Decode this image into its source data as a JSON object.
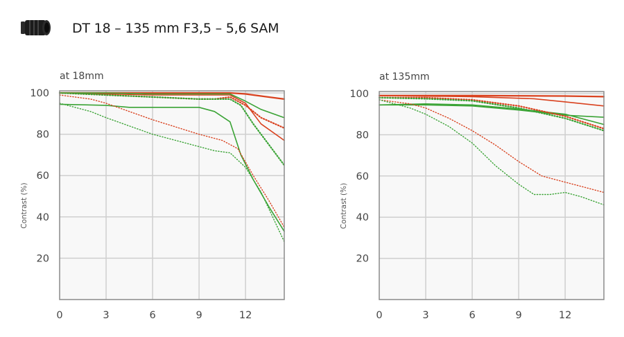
{
  "title": "DT 18 – 135 mm F3,5 – 5,6 SAM",
  "icons": {
    "lens": "lens-icon"
  },
  "colors": {
    "red": "#d9411e",
    "green": "#3aa335",
    "frame": "#8a8a8a",
    "grid": "#cfcfcf"
  },
  "chart_data": [
    {
      "type": "line",
      "title": "at 18mm",
      "xlabel": "",
      "ylabel": "Contrast (%)",
      "xlim": [
        0,
        14.5
      ],
      "ylim": [
        0,
        101
      ],
      "xticks": [
        0,
        3,
        6,
        9,
        12
      ],
      "yticks": [
        20,
        40,
        60,
        80,
        100
      ],
      "grid": true,
      "series": [
        {
          "color": "red",
          "style": "solid",
          "width": 2.2,
          "points": [
            [
              0,
              100
            ],
            [
              3,
              100
            ],
            [
              6,
              100
            ],
            [
              9,
              100
            ],
            [
              11,
              100
            ],
            [
              12,
              99.5
            ],
            [
              13,
              98.5
            ],
            [
              14.5,
              97
            ]
          ]
        },
        {
          "color": "red",
          "style": "solid",
          "width": 1.6,
          "points": [
            [
              0,
              100
            ],
            [
              3,
              99.5
            ],
            [
              6,
              99
            ],
            [
              9,
              99
            ],
            [
              11,
              99
            ],
            [
              12,
              95
            ],
            [
              13,
              85
            ],
            [
              14.5,
              77
            ]
          ]
        },
        {
          "color": "green",
          "style": "solid",
          "width": 1.6,
          "points": [
            [
              0,
              100
            ],
            [
              3,
              100
            ],
            [
              6,
              99.5
            ],
            [
              9,
              99.5
            ],
            [
              11,
              99.5
            ],
            [
              12,
              96
            ],
            [
              13,
              92
            ],
            [
              14.5,
              88
            ]
          ]
        },
        {
          "color": "green",
          "style": "solid",
          "width": 1.6,
          "points": [
            [
              0,
              94.5
            ],
            [
              3,
              94
            ],
            [
              4.5,
              93
            ],
            [
              6,
              93
            ],
            [
              8,
              93
            ],
            [
              9,
              93
            ],
            [
              10,
              91
            ],
            [
              11,
              86
            ],
            [
              11.7,
              70
            ],
            [
              12.5,
              58
            ],
            [
              13.5,
              45
            ],
            [
              14.5,
              33
            ]
          ]
        },
        {
          "color": "red",
          "style": "dotted",
          "width": 2.2,
          "points": [
            [
              0,
              100
            ],
            [
              3,
              99
            ],
            [
              6,
              98
            ],
            [
              9,
              97
            ],
            [
              10,
              97
            ],
            [
              11,
              98
            ],
            [
              12,
              94
            ],
            [
              13,
              88
            ],
            [
              14.5,
              83
            ]
          ]
        },
        {
          "color": "green",
          "style": "dotted",
          "width": 2.2,
          "points": [
            [
              0,
              100
            ],
            [
              3,
              99
            ],
            [
              6,
              98
            ],
            [
              9,
              97
            ],
            [
              10,
              97
            ],
            [
              11,
              97
            ],
            [
              11.7,
              94
            ],
            [
              12.5,
              85
            ],
            [
              13.5,
              75
            ],
            [
              14.5,
              65
            ]
          ]
        },
        {
          "color": "red",
          "style": "dotted",
          "width": 1.4,
          "points": [
            [
              0,
              99
            ],
            [
              2,
              97
            ],
            [
              3,
              95
            ],
            [
              6,
              87
            ],
            [
              9,
              80
            ],
            [
              10.5,
              77
            ],
            [
              11.5,
              73
            ],
            [
              12.5,
              60
            ],
            [
              13.5,
              48
            ],
            [
              14.5,
              35
            ]
          ]
        },
        {
          "color": "green",
          "style": "dotted",
          "width": 1.4,
          "points": [
            [
              0,
              95
            ],
            [
              2,
              91
            ],
            [
              3,
              88
            ],
            [
              4.5,
              84
            ],
            [
              6,
              80
            ],
            [
              9,
              74
            ],
            [
              10,
              72
            ],
            [
              11,
              71
            ],
            [
              12,
              64
            ],
            [
              13,
              52
            ],
            [
              14.5,
              28
            ]
          ]
        }
      ]
    },
    {
      "type": "line",
      "title": "at 135mm",
      "xlabel": "",
      "ylabel": "Contrast (%)",
      "xlim": [
        0,
        14.5
      ],
      "ylim": [
        0,
        101
      ],
      "xticks": [
        0,
        3,
        6,
        9,
        12
      ],
      "yticks": [
        20,
        40,
        60,
        80,
        100
      ],
      "grid": true,
      "series": [
        {
          "color": "red",
          "style": "solid",
          "width": 2.2,
          "points": [
            [
              0,
              99
            ],
            [
              6,
              99
            ],
            [
              12,
              98.8
            ],
            [
              14.5,
              98.5
            ]
          ]
        },
        {
          "color": "red",
          "style": "solid",
          "width": 1.6,
          "points": [
            [
              0,
              99
            ],
            [
              6,
              98.5
            ],
            [
              10,
              97.5
            ],
            [
              12,
              96
            ],
            [
              14.5,
              94
            ]
          ]
        },
        {
          "color": "green",
          "style": "solid",
          "width": 1.6,
          "points": [
            [
              0,
              94.5
            ],
            [
              3,
              94.5
            ],
            [
              6,
              94
            ],
            [
              9,
              92
            ],
            [
              12,
              89.5
            ],
            [
              14.5,
              88.5
            ]
          ]
        },
        {
          "color": "green",
          "style": "solid",
          "width": 1.6,
          "points": [
            [
              0,
              94.5
            ],
            [
              3,
              95
            ],
            [
              6,
              94.5
            ],
            [
              9,
              92.5
            ],
            [
              12,
              90
            ],
            [
              14.5,
              85
            ]
          ]
        },
        {
          "color": "red",
          "style": "dotted",
          "width": 2.2,
          "points": [
            [
              0,
              98
            ],
            [
              3,
              98
            ],
            [
              6,
              97
            ],
            [
              9,
              94
            ],
            [
              12,
              89
            ],
            [
              14.5,
              83
            ]
          ]
        },
        {
          "color": "green",
          "style": "dotted",
          "width": 2.2,
          "points": [
            [
              0,
              98
            ],
            [
              3,
              97.5
            ],
            [
              6,
              96.5
            ],
            [
              9,
              93
            ],
            [
              12,
              88
            ],
            [
              14.5,
              82
            ]
          ]
        },
        {
          "color": "red",
          "style": "dotted",
          "width": 1.4,
          "points": [
            [
              0,
              97
            ],
            [
              2,
              95
            ],
            [
              3,
              93
            ],
            [
              4.5,
              88
            ],
            [
              6,
              82
            ],
            [
              7.5,
              75
            ],
            [
              9,
              67
            ],
            [
              10.5,
              60
            ],
            [
              12,
              57
            ],
            [
              13,
              55
            ],
            [
              14.5,
              52
            ]
          ]
        },
        {
          "color": "green",
          "style": "dotted",
          "width": 1.4,
          "points": [
            [
              0,
              97
            ],
            [
              2,
              93
            ],
            [
              3,
              90
            ],
            [
              4.5,
              84
            ],
            [
              6,
              76
            ],
            [
              7.5,
              65
            ],
            [
              9,
              56
            ],
            [
              10,
              51
            ],
            [
              11,
              51
            ],
            [
              12,
              52
            ],
            [
              13,
              50
            ],
            [
              14.5,
              46
            ]
          ]
        }
      ]
    }
  ]
}
